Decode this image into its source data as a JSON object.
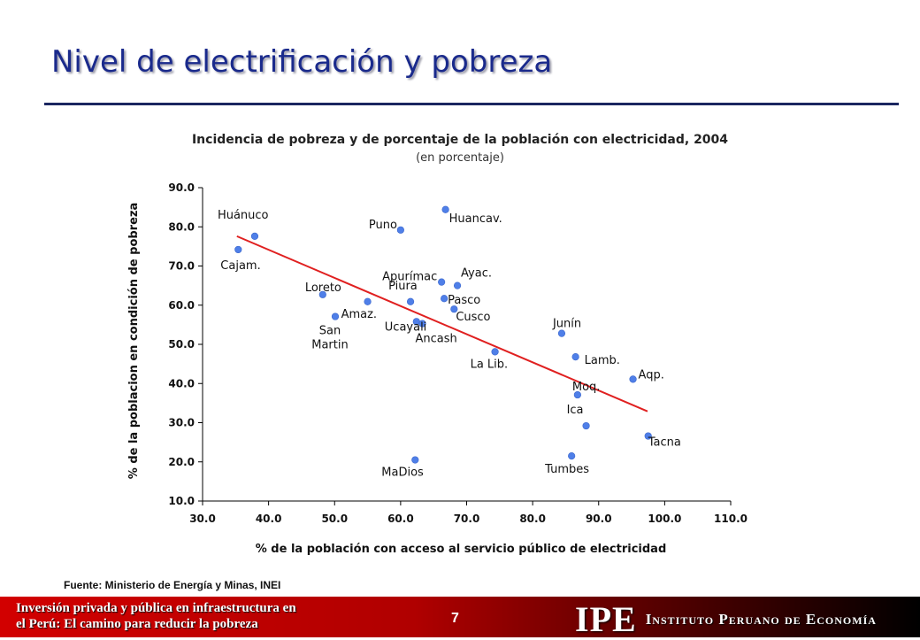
{
  "slide": {
    "title": "Nivel de electrificación y pobreza",
    "source": "Fuente: Ministerio de Energía y Minas, INEI",
    "footer_line1": "Inversión privada y pública en infraestructura en",
    "footer_line2": "el Perú: El camino para reducir la pobreza",
    "page_number": "7",
    "brand_abbr": "IPE",
    "brand_name": "Instituto Peruano de Economía"
  },
  "colors": {
    "title": "#1a2a8c",
    "point": "#4f7fe8",
    "trendline": "#e02020",
    "footer": "#c00000"
  },
  "chart_data": {
    "type": "scatter",
    "title": "Incidencia de pobreza y de porcentaje de la población con electricidad, 2004",
    "subtitle": "(en porcentaje)",
    "xlabel": "% de la población con acceso al servicio público de electricidad",
    "ylabel": "% de la poblacion en condición de pobreza",
    "xlim": [
      30,
      110
    ],
    "ylim": [
      10,
      90
    ],
    "xticks": [
      30,
      40,
      50,
      60,
      70,
      80,
      90,
      100,
      110
    ],
    "yticks": [
      10,
      20,
      30,
      40,
      50,
      60,
      70,
      80,
      90
    ],
    "tick_format": "0.0",
    "grid": false,
    "legend": "none",
    "points": [
      {
        "label": "Huánuco",
        "x": 37.9,
        "y": 77.6
      },
      {
        "label": "Cajam.",
        "x": 35.4,
        "y": 74.2
      },
      {
        "label": "Puno",
        "x": 60.0,
        "y": 79.2
      },
      {
        "label": "Huancav.",
        "x": 66.8,
        "y": 84.4
      },
      {
        "label": "Loreto",
        "x": 48.2,
        "y": 62.7
      },
      {
        "label": "Amaz.",
        "x": 55.0,
        "y": 60.9
      },
      {
        "label": "San Martin",
        "x": 50.1,
        "y": 57.1
      },
      {
        "label": "Piura",
        "x": 61.5,
        "y": 60.9
      },
      {
        "label": "Apurímac",
        "x": 66.2,
        "y": 65.9
      },
      {
        "label": "Ayac.",
        "x": 68.6,
        "y": 65.0
      },
      {
        "label": "Pasco",
        "x": 66.6,
        "y": 61.7
      },
      {
        "label": "Cusco",
        "x": 68.1,
        "y": 59.0
      },
      {
        "label": "Ucayali",
        "x": 62.4,
        "y": 55.8
      },
      {
        "label": "Ancash",
        "x": 63.3,
        "y": 55.3
      },
      {
        "label": "La Lib.",
        "x": 74.3,
        "y": 48.1
      },
      {
        "label": "Junín",
        "x": 84.4,
        "y": 52.8
      },
      {
        "label": "Lamb.",
        "x": 86.5,
        "y": 46.8
      },
      {
        "label": "Aqp.",
        "x": 95.2,
        "y": 41.1
      },
      {
        "label": "Moq.",
        "x": 86.8,
        "y": 37.1
      },
      {
        "label": "Ica",
        "x": 88.1,
        "y": 29.2
      },
      {
        "label": "Tacna",
        "x": 97.5,
        "y": 26.6
      },
      {
        "label": "Tumbes",
        "x": 85.9,
        "y": 21.5
      },
      {
        "label": "MaDios",
        "x": 62.2,
        "y": 20.5
      }
    ],
    "trendline": {
      "x": [
        35.2,
        97.4
      ],
      "y": [
        77.6,
        32.9
      ]
    }
  }
}
